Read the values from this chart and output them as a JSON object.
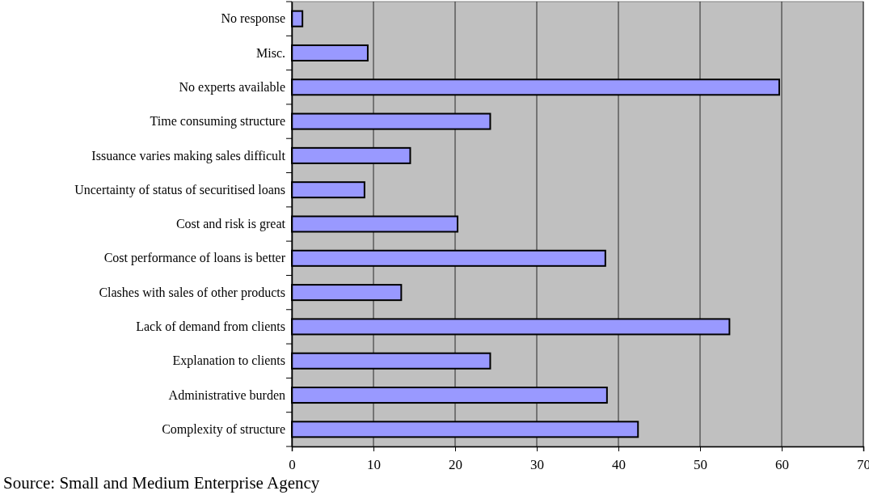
{
  "chart_data": {
    "type": "bar",
    "orientation": "horizontal",
    "categories": [
      "No response",
      "Misc.",
      "No experts available",
      "Time consuming structure",
      "Issuance varies making sales difficult",
      "Uncertainty of status of securitised loans",
      "Cost and risk is great",
      "Cost performance of loans is better",
      "Clashes with sales of other products",
      "Lack of demand from clients",
      "Explanation to clients",
      "Administrative burden",
      "Complexity of structure"
    ],
    "values": [
      1.3,
      9.3,
      59.7,
      24.3,
      14.5,
      8.9,
      20.3,
      38.4,
      13.4,
      53.6,
      24.3,
      38.6,
      42.4
    ],
    "color": "#9999ff",
    "xlim": [
      0,
      70
    ],
    "xticks": [
      0,
      10,
      20,
      30,
      40,
      50,
      60,
      70
    ],
    "grid": "x",
    "annotations": [
      "Source: Small and Medium Enterprise Agency"
    ]
  }
}
